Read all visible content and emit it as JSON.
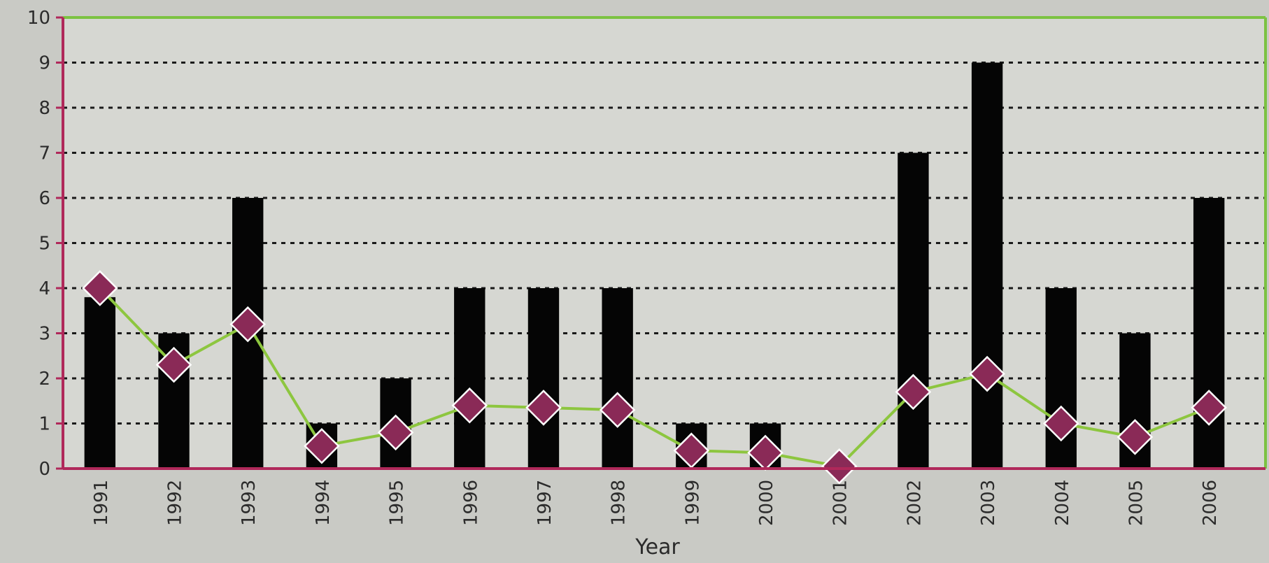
{
  "chart_data": {
    "type": "bar",
    "title": "",
    "xlabel": "Year",
    "ylabel": "",
    "ylim": [
      0,
      10
    ],
    "yticks": [
      "0",
      "1",
      "2",
      "3",
      "4",
      "5",
      "6",
      "7",
      "8",
      "9",
      "10"
    ],
    "grid": true,
    "categories": [
      "1991",
      "1992",
      "1993",
      "1994",
      "1995",
      "1996",
      "1997",
      "1998",
      "1999",
      "2000",
      "2001",
      "2002",
      "2003",
      "2004",
      "2005",
      "2006"
    ],
    "series": [
      {
        "type": "bar",
        "values": [
          3.8,
          3,
          6,
          1,
          2,
          4,
          4,
          4,
          1,
          1,
          0,
          7,
          9,
          4,
          3,
          6
        ]
      },
      {
        "type": "line",
        "values": [
          4,
          2.3,
          3.2,
          0.5,
          0.8,
          1.4,
          1.35,
          1.3,
          0.4,
          0.35,
          0.05,
          1.7,
          2.1,
          1.0,
          0.7,
          1.35
        ]
      }
    ],
    "colors": {
      "bar": "#050505",
      "line": "#8dc63f",
      "marker": "#8a2a57",
      "marker_stroke": "#ffffff",
      "y_axis": "#b0285a",
      "x_axis": "#b0285a",
      "frame": "#7cc242",
      "grid": "#1a1a1a"
    }
  }
}
